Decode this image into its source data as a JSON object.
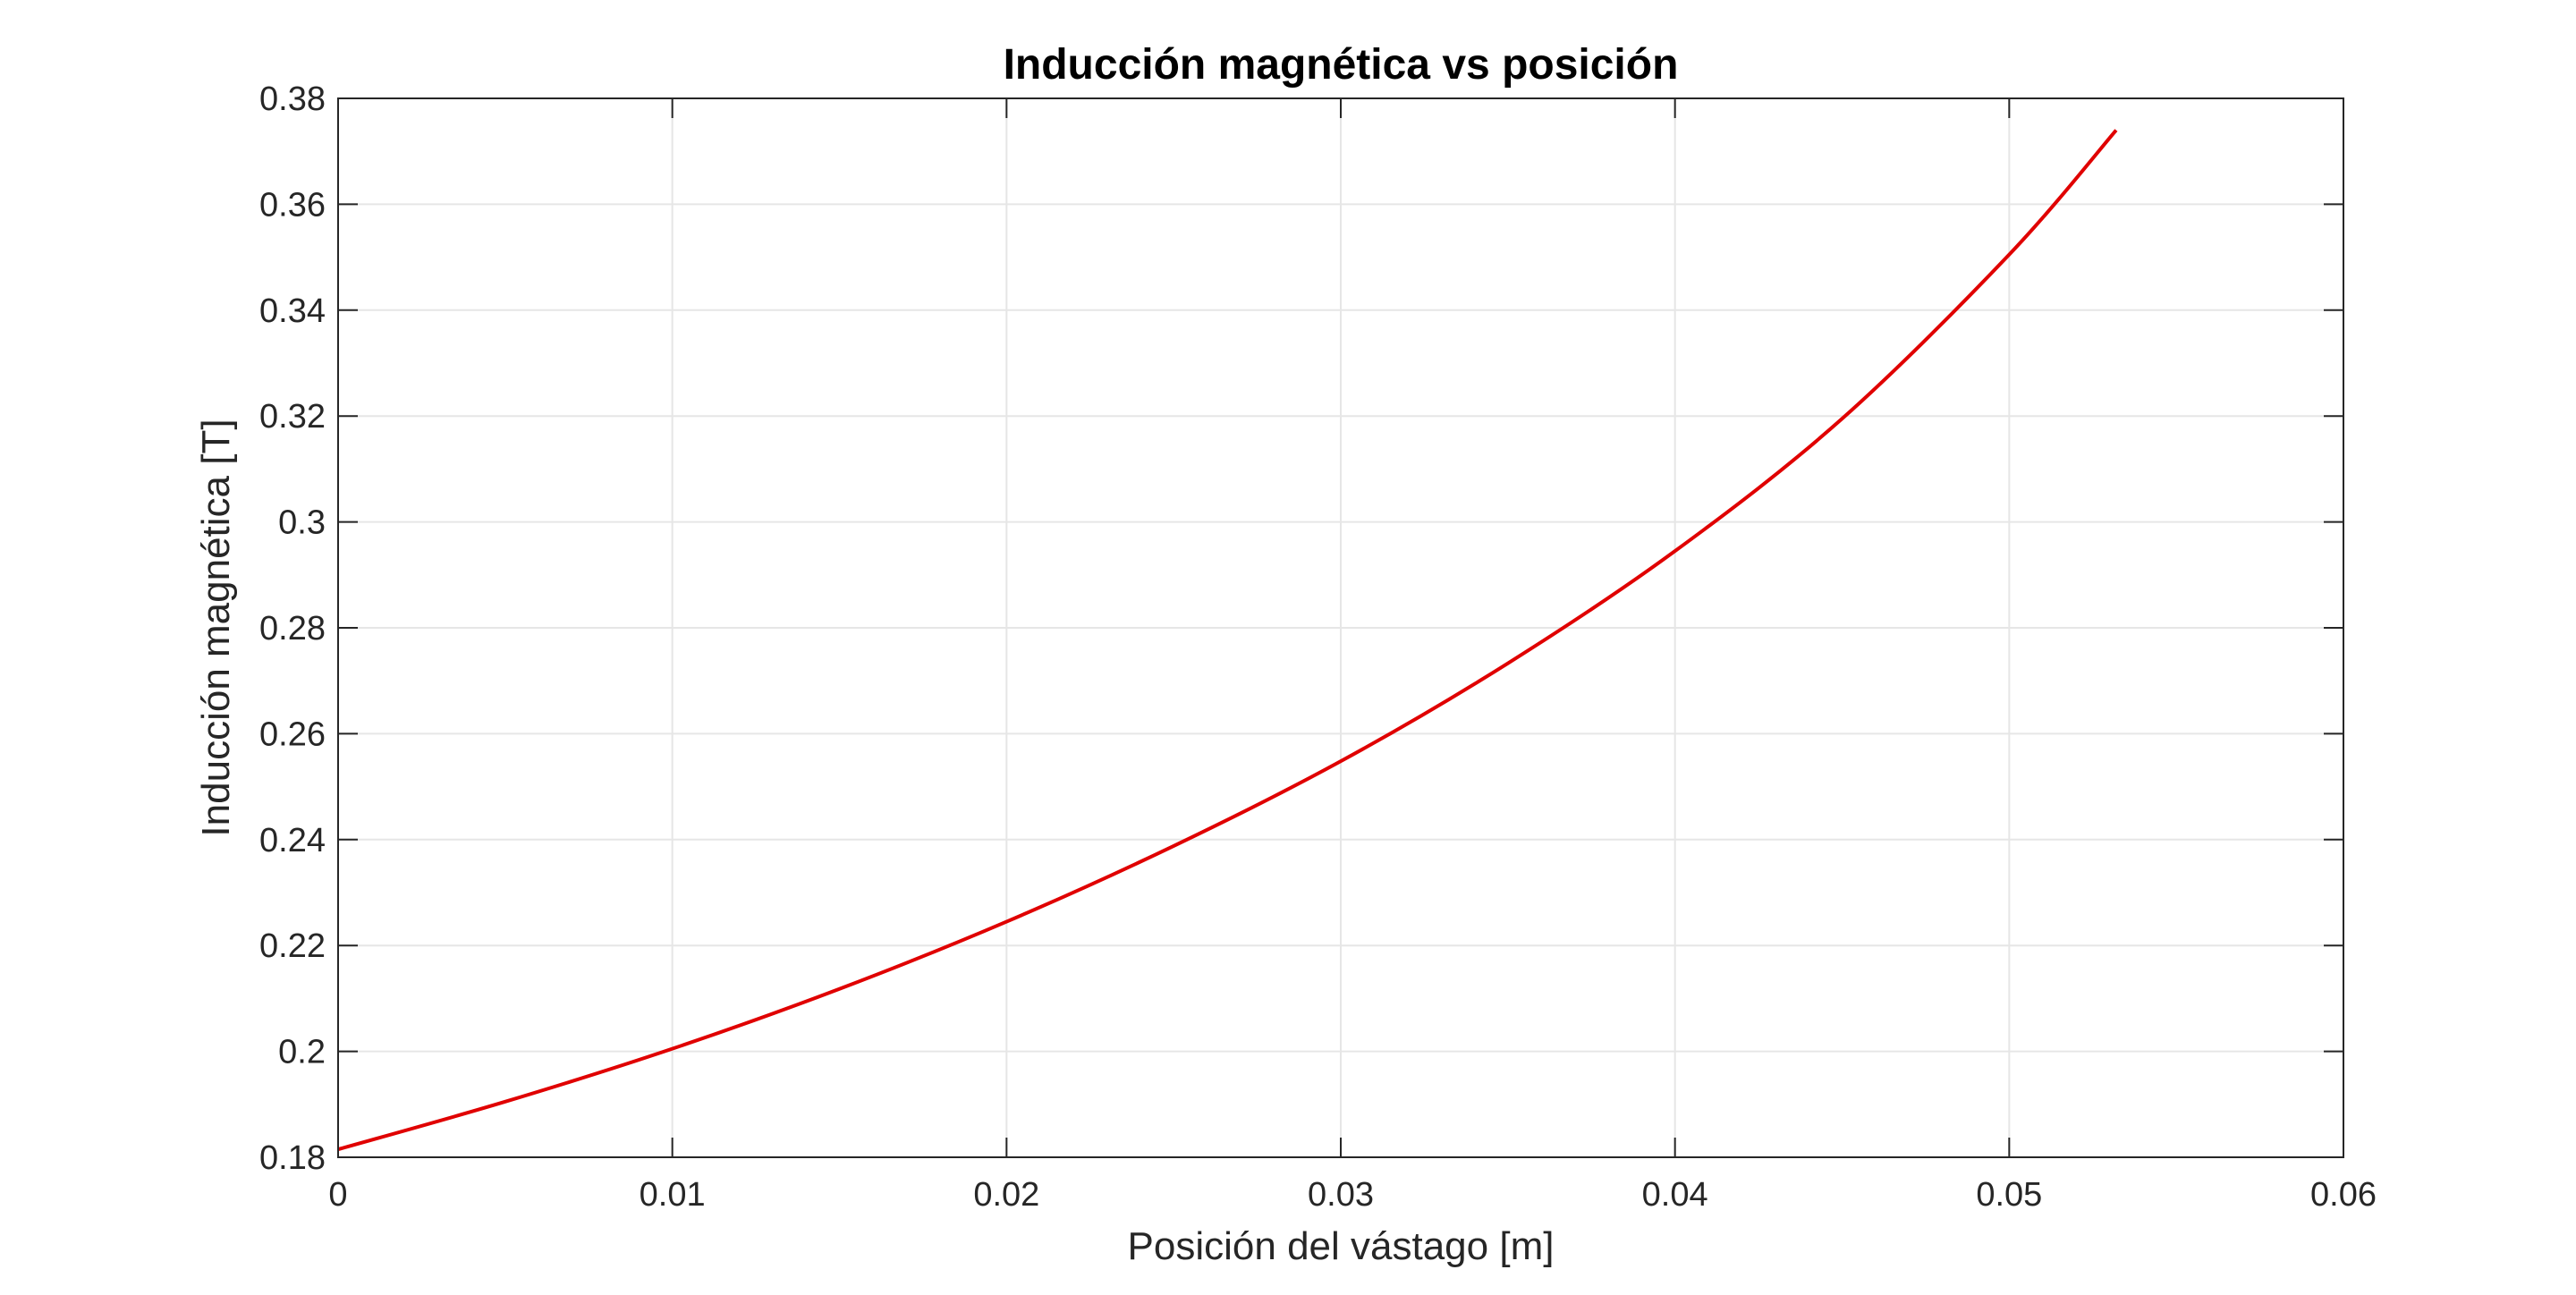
{
  "chart_data": {
    "type": "line",
    "title": "Inducción magnética vs posición",
    "xlabel": "Posición del vástago [m]",
    "ylabel": "Inducción magnética [T]",
    "xlim": [
      0,
      0.06
    ],
    "ylim": [
      0.18,
      0.38
    ],
    "xticks": [
      "0",
      "0.01",
      "0.02",
      "0.03",
      "0.04",
      "0.05",
      "0.06"
    ],
    "yticks": [
      "0.18",
      "0.2",
      "0.22",
      "0.24",
      "0.26",
      "0.28",
      "0.3",
      "0.32",
      "0.34",
      "0.36",
      "0.38"
    ],
    "grid": true,
    "series": [
      {
        "color": "#e00000",
        "x": [
          0,
          0.005,
          0.01,
          0.015,
          0.02,
          0.025,
          0.03,
          0.035,
          0.04,
          0.045,
          0.05,
          0.0532
        ],
        "y": [
          0.1815,
          0.1905,
          0.2005,
          0.2118,
          0.2245,
          0.2388,
          0.2548,
          0.2733,
          0.2945,
          0.3195,
          0.3505,
          0.374
        ]
      }
    ]
  }
}
